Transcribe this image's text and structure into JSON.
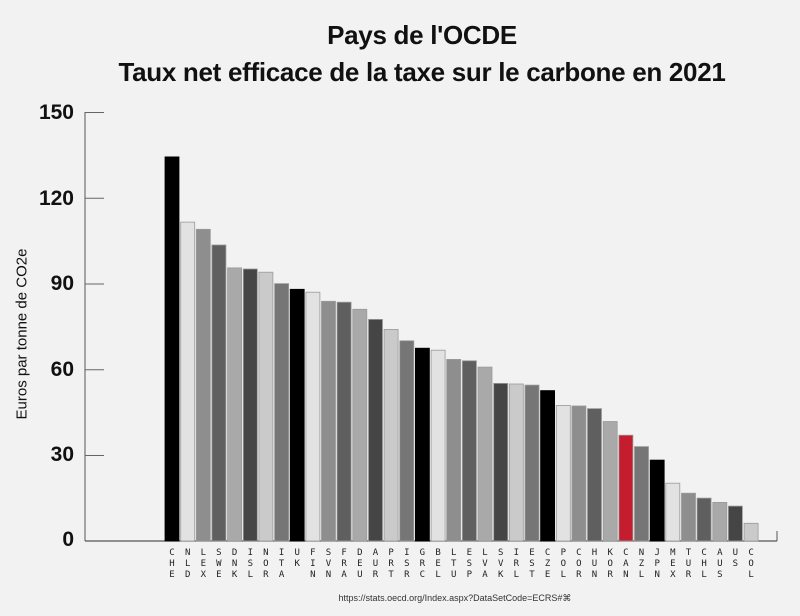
{
  "chart_data": {
    "type": "bar",
    "title": "Pays de l'OCDE",
    "subtitle": "Taux net efficace de la taxe sur le carbone en 2021",
    "xlabel": "",
    "ylabel": "Euros par tonne de CO2e",
    "ylim": [
      0,
      150
    ],
    "yticks": [
      0,
      30,
      60,
      90,
      120,
      150
    ],
    "grid": false,
    "legend": null,
    "categories": [
      "CHE",
      "NLD",
      "LEX",
      "SWE",
      "DNK",
      "ISL",
      "NOR",
      "ITA",
      "UK",
      "FIN",
      "SVN",
      "FRA",
      "DEU",
      "AUR",
      "PRT",
      "ISR",
      "GRC",
      "BEL",
      "LTU",
      "ESP",
      "LVA",
      "SVK",
      "IRL",
      "EST",
      "CZE",
      "POL",
      "COR",
      "HUN",
      "KOR",
      "CAN",
      "NZL",
      "JPN",
      "MEX",
      "TUR",
      "CHL",
      "AUS",
      "US",
      "COL"
    ],
    "values": [
      134.3,
      111.5,
      109.0,
      103.5,
      95.5,
      95.1,
      94.0,
      90.0,
      88.0,
      87.0,
      83.8,
      83.5,
      81.0,
      77.5,
      74.0,
      70.0,
      67.4,
      66.7,
      63.5,
      63.0,
      60.8,
      55.1,
      54.9,
      54.5,
      52.6,
      47.4,
      47.2,
      46.3,
      41.8,
      37.0,
      33.0,
      28.3,
      20.2,
      16.7,
      15.0,
      13.5,
      12.2,
      6.2
    ],
    "colors": [
      "#000000",
      "#e2e2e2",
      "#8e8e8e",
      "#5f5f5f",
      "#a9a9a9",
      "#454545",
      "#cacaca",
      "#767676",
      "#000000",
      "#e2e2e2",
      "#8e8e8e",
      "#5f5f5f",
      "#a9a9a9",
      "#454545",
      "#cacaca",
      "#767676",
      "#000000",
      "#e2e2e2",
      "#8e8e8e",
      "#5f5f5f",
      "#a9a9a9",
      "#454545",
      "#cacaca",
      "#767676",
      "#000000",
      "#e2e2e2",
      "#8e8e8e",
      "#5f5f5f",
      "#a9a9a9",
      "#c41e2e",
      "#767676",
      "#000000",
      "#e2e2e2",
      "#8e8e8e",
      "#5f5f5f",
      "#a9a9a9",
      "#454545",
      "#cacaca"
    ],
    "highlight": {
      "category": "CAN",
      "color": "#c41e2e"
    },
    "source": "https://stats.oecd.org/Index.aspx?DataSetCode=ECRS#"
  },
  "header": {
    "title_line1": "Pays de l'OCDE",
    "title_line2": "Taux net efficace de la taxe sur le carbone en 2021"
  },
  "axis": {
    "ylabel": "Euros par tonne de CO2e",
    "ytick_labels": [
      "150",
      "120",
      "90",
      "60",
      "30",
      "0"
    ]
  },
  "footer": {
    "source": "https://stats.oecd.org/Index.aspx?DataSetCode=ECRS#⌘"
  },
  "colors": {
    "background": "#f2f2f2",
    "axis": "#555555",
    "highlight": "#c41e2e"
  }
}
